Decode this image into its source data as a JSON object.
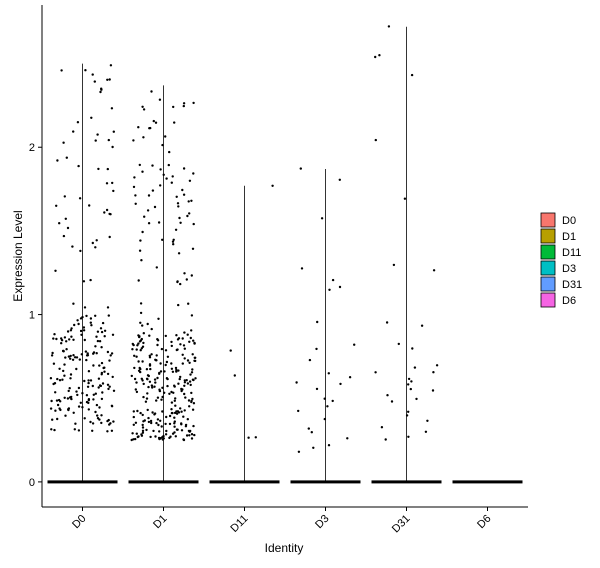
{
  "chart_data": {
    "type": "violin-jitter",
    "title": "",
    "xlabel": "Identity",
    "ylabel": "Expression Level",
    "ylim": [
      -0.15,
      2.85
    ],
    "yticks": [
      0,
      1,
      2
    ],
    "grid": false,
    "legend_position": "right",
    "categories": [
      "D0",
      "D1",
      "D11",
      "D3",
      "D31",
      "D6"
    ],
    "legend": [
      {
        "label": "D0",
        "color": "#F8766D"
      },
      {
        "label": "D1",
        "color": "#B79F00"
      },
      {
        "label": "D11",
        "color": "#00BA38"
      },
      {
        "label": "D3",
        "color": "#00BFC4"
      },
      {
        "label": "D31",
        "color": "#619CFF"
      },
      {
        "label": "D6",
        "color": "#F564E3"
      }
    ],
    "series": [
      {
        "category": "D0",
        "max": 2.5,
        "n_nonzero": 230,
        "cluster": [
          0.3,
          1.0
        ],
        "high_density": 0.45
      },
      {
        "category": "D1",
        "max": 2.37,
        "n_nonzero": 340,
        "cluster": [
          0.25,
          0.9
        ],
        "high_density": 0.5
      },
      {
        "category": "D11",
        "max": 1.77,
        "n_nonzero": 0,
        "points": [
          1.77,
          0.79,
          0.63,
          0.27,
          0.26
        ]
      },
      {
        "category": "D3",
        "max": 1.87,
        "n_nonzero": 0,
        "points": [
          1.87,
          1.8,
          1.58,
          1.28,
          1.2,
          1.17,
          1.15,
          0.95,
          0.82,
          0.79,
          0.73,
          0.65,
          0.63,
          0.6,
          0.58,
          0.55,
          0.5,
          0.48,
          0.45,
          0.42,
          0.38,
          0.32,
          0.3,
          0.26,
          0.22,
          0.2,
          0.18
        ]
      },
      {
        "category": "D31",
        "max": 2.72,
        "n_nonzero": 0,
        "points": [
          2.72,
          2.55,
          2.54,
          2.43,
          2.04,
          1.69,
          1.3,
          1.27,
          0.95,
          0.93,
          0.83,
          0.8,
          0.7,
          0.68,
          0.66,
          0.65,
          0.62,
          0.6,
          0.58,
          0.56,
          0.55,
          0.52,
          0.5,
          0.48,
          0.42,
          0.4,
          0.36,
          0.33,
          0.3,
          0.27,
          0.25
        ]
      },
      {
        "category": "D6",
        "max": 0,
        "n_nonzero": 0,
        "points": []
      }
    ]
  }
}
